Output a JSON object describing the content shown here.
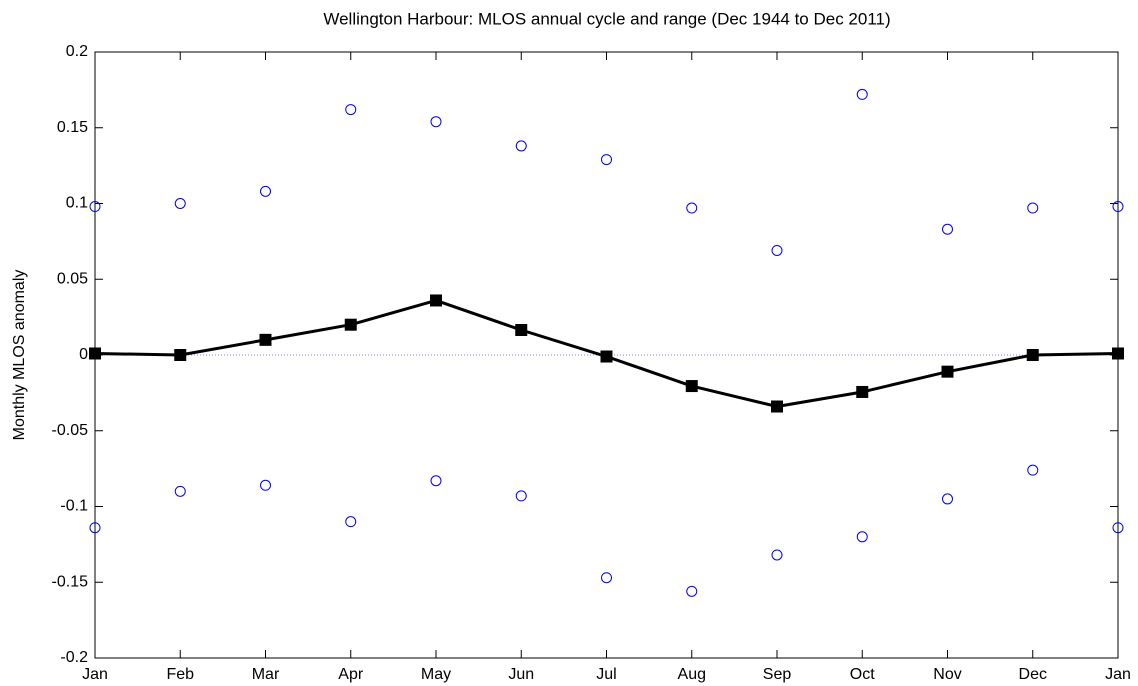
{
  "chart_data": {
    "type": "line",
    "title": "Wellington Harbour:  MLOS annual cycle and range (Dec 1944 to Dec 2011)",
    "y_label": "Monthly MLOS anomaly",
    "categories": [
      "Jan",
      "Feb",
      "Mar",
      "Apr",
      "May",
      "Jun",
      "Jul",
      "Aug",
      "Sep",
      "Oct",
      "Nov",
      "Dec",
      "Jan"
    ],
    "series": [
      {
        "color": "#000000",
        "marker": "square",
        "line": true,
        "values": [
          0.001,
          0.0,
          0.01,
          0.02,
          0.036,
          0.0165,
          -0.001,
          -0.0205,
          -0.034,
          -0.0244,
          -0.011,
          0.0,
          0.001
        ]
      },
      {
        "color": "#0000ff",
        "marker": "circle",
        "line": false,
        "values": [
          0.098,
          0.1,
          0.108,
          0.162,
          0.154,
          0.138,
          0.129,
          0.097,
          0.069,
          0.172,
          0.083,
          0.097,
          0.098
        ]
      },
      {
        "color": "#0000ff",
        "marker": "circle",
        "line": false,
        "values": [
          -0.114,
          -0.09,
          -0.086,
          -0.11,
          -0.083,
          -0.093,
          -0.147,
          -0.156,
          -0.132,
          -0.12,
          -0.095,
          -0.076,
          -0.114
        ]
      }
    ],
    "ylim": [
      -0.2,
      0.2
    ],
    "yticks": [
      -0.2,
      -0.15,
      -0.1,
      -0.05,
      0,
      0.05,
      0.1,
      0.15,
      0.2
    ],
    "zero_line": true,
    "grid": false
  }
}
